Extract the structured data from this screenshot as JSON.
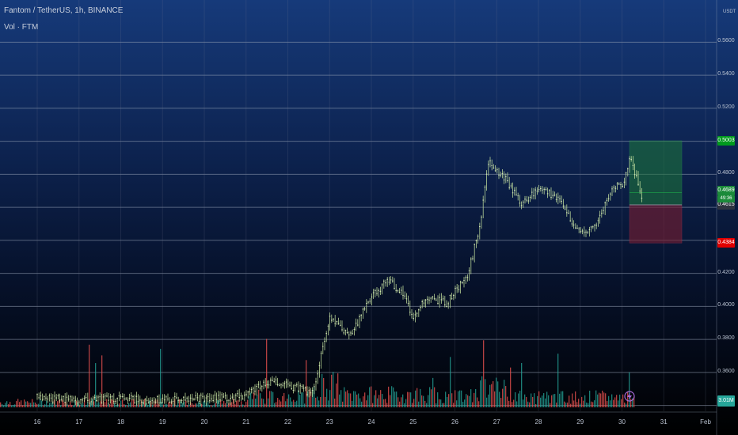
{
  "chart_data": {
    "type": "candlestick",
    "title": "Fantom / TetherUS, 1h, BINANCE",
    "indicator_label": "Vol · FTM",
    "currency": "USDT",
    "ylim": [
      0.3333,
      0.6
    ],
    "y_ticks": [
      "0.5600",
      "0.5400",
      "0.5200",
      "0.4800",
      "0.4200",
      "0.4000",
      "0.3800",
      "0.3600"
    ],
    "x_ticks": [
      "16",
      "17",
      "18",
      "19",
      "20",
      "21",
      "22",
      "23",
      "24",
      "25",
      "26",
      "27",
      "28",
      "29",
      "30",
      "31",
      "Feb"
    ],
    "price_path": [
      {
        "time": "16",
        "price": 0.3448
      },
      {
        "time": "17",
        "price": 0.3433
      },
      {
        "time": "18",
        "price": 0.3439
      },
      {
        "time": "19",
        "price": 0.3431
      },
      {
        "time": "20",
        "price": 0.3443
      },
      {
        "time": "21",
        "price": 0.3455
      },
      {
        "time": "21.5",
        "price": 0.3544
      },
      {
        "time": "22",
        "price": 0.3522
      },
      {
        "time": "22.6",
        "price": 0.3475
      },
      {
        "time": "23",
        "price": 0.392
      },
      {
        "time": "23.5",
        "price": 0.383
      },
      {
        "time": "24",
        "price": 0.405
      },
      {
        "time": "24.4",
        "price": 0.416
      },
      {
        "time": "24.8",
        "price": 0.407
      },
      {
        "time": "25",
        "price": 0.392
      },
      {
        "time": "25.3",
        "price": 0.406
      },
      {
        "time": "25.8",
        "price": 0.402
      },
      {
        "time": "26",
        "price": 0.409
      },
      {
        "time": "26.3",
        "price": 0.418
      },
      {
        "time": "26.6",
        "price": 0.449
      },
      {
        "time": "26.8",
        "price": 0.488
      },
      {
        "time": "27.2",
        "price": 0.478
      },
      {
        "time": "27.6",
        "price": 0.462
      },
      {
        "time": "28",
        "price": 0.471
      },
      {
        "time": "28.5",
        "price": 0.466
      },
      {
        "time": "28.8",
        "price": 0.452
      },
      {
        "time": "29",
        "price": 0.444
      },
      {
        "time": "29.4",
        "price": 0.45
      },
      {
        "time": "29.8",
        "price": 0.474
      },
      {
        "time": "30",
        "price": 0.472
      },
      {
        "time": "30.2",
        "price": 0.491
      },
      {
        "time": "30.5",
        "price": 0.464
      }
    ],
    "current_price": "0.4689",
    "countdown": "49:36",
    "entry_price": "0.4615",
    "target_price": "0.5003",
    "stop_price": "0.4384",
    "volume_value": "3.01M",
    "colors": {
      "up": "#26a69a",
      "down": "#ef5350",
      "price_line": "#c8e6a0",
      "target_zone": "#1e7a3a",
      "stop_zone": "#7a1e32",
      "target_badge": "#009a1e",
      "stop_badge": "#e00000",
      "current_badge": "#1b8a3a",
      "entry_badge": "#2e3440",
      "volume_badge": "#26a69a"
    }
  }
}
